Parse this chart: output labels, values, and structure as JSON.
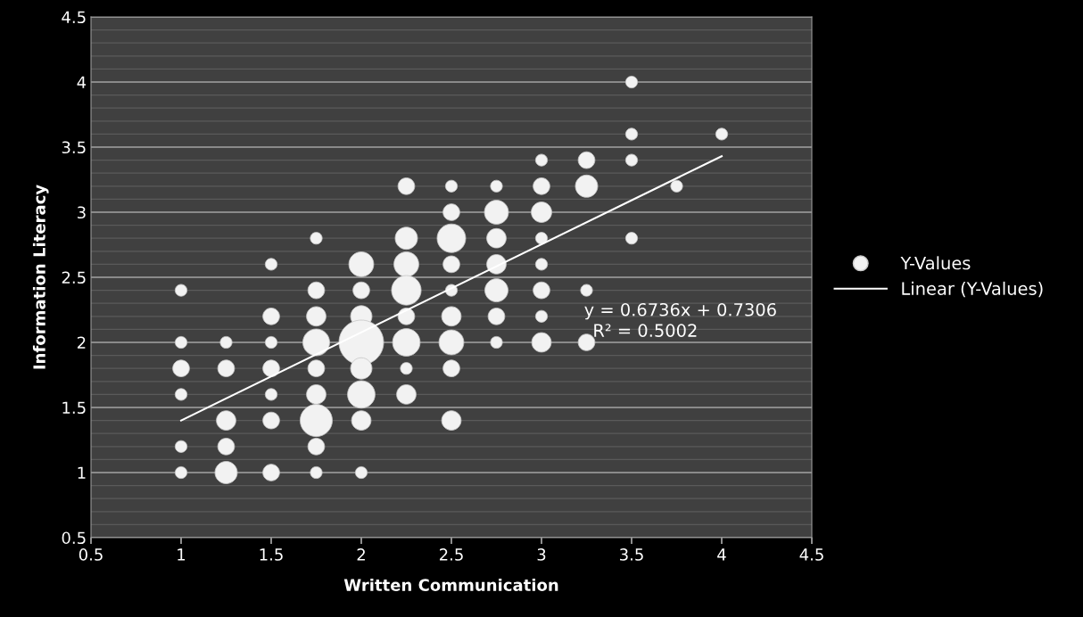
{
  "chart_data": {
    "type": "bubble",
    "xlabel": "Written Communication",
    "ylabel": "Information Literacy",
    "xlim": [
      0.5,
      4.5
    ],
    "xticks": [
      0.5,
      1,
      1.5,
      2,
      2.5,
      3,
      3.5,
      4,
      4.5
    ],
    "ylim": [
      0.5,
      4.5
    ],
    "yticks": [
      0.5,
      1,
      1.5,
      2,
      2.5,
      3,
      3.5,
      4,
      4.5
    ],
    "grid": "y",
    "legend": "right",
    "annotations": [
      "y = 0.6736x + 0.7306",
      "R² = 0.5002"
    ],
    "series": [
      {
        "name": "Y-Values",
        "color": "#f2f2f2",
        "x": [
          1,
          1,
          1,
          1,
          1,
          1,
          1.25,
          1.25,
          1.25,
          1.25,
          1.25,
          1.5,
          1.5,
          1.5,
          1.5,
          1.5,
          1.5,
          1.5,
          1.75,
          1.75,
          1.75,
          1.75,
          1.75,
          1.75,
          1.75,
          1.75,
          1.75,
          2,
          2,
          2,
          2,
          2,
          2,
          2,
          2,
          2.25,
          2.25,
          2.25,
          2.25,
          2.25,
          2.25,
          2.25,
          2.25,
          2.5,
          2.5,
          2.5,
          2.5,
          2.5,
          2.5,
          2.5,
          2.5,
          2.5,
          2.75,
          2.75,
          2.75,
          2.75,
          2.75,
          2.75,
          2.75,
          3,
          3,
          3,
          3,
          3,
          3,
          3,
          3,
          3.25,
          3.25,
          3.25,
          3.25,
          3.5,
          3.5,
          3.5,
          3.5,
          3.75,
          4
        ],
        "values": [
          2.4,
          2.0,
          1.8,
          1.6,
          1.2,
          1.0,
          2.0,
          1.8,
          1.4,
          1.2,
          1.0,
          2.6,
          2.2,
          2.0,
          1.8,
          1.6,
          1.4,
          1.0,
          2.8,
          2.4,
          2.2,
          2.0,
          1.8,
          1.6,
          1.4,
          1.2,
          1.0,
          2.6,
          2.4,
          2.2,
          2.0,
          1.8,
          1.6,
          1.4,
          1.0,
          3.2,
          2.8,
          2.6,
          2.4,
          2.2,
          2.0,
          1.8,
          1.6,
          3.2,
          3.0,
          2.8,
          2.6,
          2.4,
          2.2,
          2.0,
          1.8,
          1.4,
          3.2,
          3.0,
          2.8,
          2.6,
          2.4,
          2.2,
          2.0,
          3.4,
          3.2,
          3.0,
          2.8,
          2.6,
          2.4,
          2.2,
          2.0,
          3.4,
          3.2,
          2.4,
          2.0,
          4.0,
          3.6,
          3.4,
          2.8,
          3.2,
          3.6
        ],
        "sizes": [
          0.07,
          0.07,
          0.14,
          0.07,
          0.07,
          0.07,
          0.07,
          0.14,
          0.19,
          0.14,
          0.25,
          0.07,
          0.14,
          0.07,
          0.14,
          0.07,
          0.14,
          0.14,
          0.07,
          0.14,
          0.19,
          0.36,
          0.14,
          0.19,
          0.52,
          0.14,
          0.07,
          0.31,
          0.14,
          0.23,
          1,
          0.23,
          0.38,
          0.19,
          0.07,
          0.14,
          0.25,
          0.31,
          0.44,
          0.14,
          0.38,
          0.07,
          0.19,
          0.07,
          0.14,
          0.41,
          0.14,
          0.07,
          0.19,
          0.31,
          0.14,
          0.19,
          0.07,
          0.29,
          0.19,
          0.19,
          0.27,
          0.14,
          0.07,
          0.07,
          0.14,
          0.21,
          0.07,
          0.07,
          0.14,
          0.07,
          0.19,
          0.14,
          0.25,
          0.07,
          0.14,
          0.07,
          0.07,
          0.07,
          0.07,
          0.07,
          0.07
        ]
      },
      {
        "name": "Linear (Y-Values)",
        "type": "line",
        "color": "#ffffff",
        "x": [
          1,
          4
        ],
        "values": [
          1.4,
          3.43
        ]
      }
    ]
  }
}
